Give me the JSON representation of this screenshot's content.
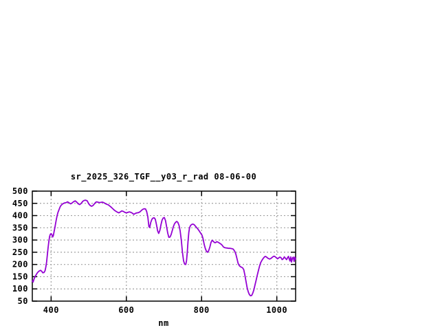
{
  "figure": {
    "background": "#ffffff",
    "border_color": "#000000",
    "text_color": "#000000"
  },
  "chart_data": {
    "type": "line",
    "title": "sr_2025_326_TGF__y03_r_rad 08-06-00",
    "xlabel": "nm",
    "ylabel": "",
    "xlim": [
      350,
      1050
    ],
    "ylim": [
      50,
      500
    ],
    "xticks": [
      400,
      600,
      800,
      1000
    ],
    "yticks": [
      50,
      100,
      150,
      200,
      250,
      300,
      350,
      400,
      450,
      500
    ],
    "grid": true,
    "legend_position": "none",
    "line_color": "#9400D3",
    "grid_color": "#A0A0A0",
    "series": [
      {
        "name": "sr_2025_326_TGF__y03_r_rad 08-06-00",
        "points": [
          [
            350,
            133
          ],
          [
            352,
            128
          ],
          [
            355,
            142
          ],
          [
            358,
            152
          ],
          [
            361,
            160
          ],
          [
            364,
            167
          ],
          [
            368,
            173
          ],
          [
            372,
            176
          ],
          [
            375,
            172
          ],
          [
            378,
            166
          ],
          [
            381,
            167
          ],
          [
            384,
            175
          ],
          [
            386,
            190
          ],
          [
            388,
            210
          ],
          [
            390,
            240
          ],
          [
            392,
            270
          ],
          [
            394,
            295
          ],
          [
            396,
            315
          ],
          [
            398,
            324
          ],
          [
            400,
            326
          ],
          [
            402,
            322
          ],
          [
            404,
            312
          ],
          [
            406,
            318
          ],
          [
            408,
            335
          ],
          [
            410,
            350
          ],
          [
            412,
            368
          ],
          [
            414,
            385
          ],
          [
            416,
            400
          ],
          [
            418,
            412
          ],
          [
            420,
            420
          ],
          [
            422,
            428
          ],
          [
            424,
            436
          ],
          [
            426,
            441
          ],
          [
            428,
            444
          ],
          [
            430,
            447
          ],
          [
            433,
            450
          ],
          [
            436,
            452
          ],
          [
            440,
            453
          ],
          [
            444,
            456
          ],
          [
            448,
            452
          ],
          [
            452,
            448
          ],
          [
            456,
            452
          ],
          [
            460,
            457
          ],
          [
            464,
            460
          ],
          [
            468,
            455
          ],
          [
            472,
            448
          ],
          [
            476,
            445
          ],
          [
            480,
            450
          ],
          [
            484,
            458
          ],
          [
            488,
            462
          ],
          [
            492,
            463
          ],
          [
            496,
            460
          ],
          [
            500,
            448
          ],
          [
            504,
            441
          ],
          [
            508,
            438
          ],
          [
            512,
            442
          ],
          [
            516,
            450
          ],
          [
            520,
            456
          ],
          [
            524,
            455
          ],
          [
            528,
            453
          ],
          [
            532,
            454
          ],
          [
            536,
            455
          ],
          [
            540,
            453
          ],
          [
            544,
            449
          ],
          [
            548,
            446
          ],
          [
            552,
            444
          ],
          [
            556,
            439
          ],
          [
            560,
            434
          ],
          [
            564,
            428
          ],
          [
            568,
            422
          ],
          [
            572,
            418
          ],
          [
            576,
            414
          ],
          [
            580,
            411
          ],
          [
            584,
            415
          ],
          [
            588,
            419
          ],
          [
            592,
            417
          ],
          [
            596,
            413
          ],
          [
            600,
            411
          ],
          [
            604,
            413
          ],
          [
            608,
            415
          ],
          [
            612,
            413
          ],
          [
            616,
            410
          ],
          [
            620,
            405
          ],
          [
            624,
            409
          ],
          [
            628,
            411
          ],
          [
            632,
            412
          ],
          [
            636,
            415
          ],
          [
            640,
            421
          ],
          [
            644,
            426
          ],
          [
            648,
            428
          ],
          [
            651,
            427
          ],
          [
            654,
            417
          ],
          [
            657,
            395
          ],
          [
            660,
            355
          ],
          [
            662,
            351
          ],
          [
            665,
            372
          ],
          [
            668,
            385
          ],
          [
            671,
            390
          ],
          [
            674,
            391
          ],
          [
            677,
            385
          ],
          [
            680,
            363
          ],
          [
            683,
            338
          ],
          [
            686,
            327
          ],
          [
            689,
            339
          ],
          [
            692,
            362
          ],
          [
            695,
            382
          ],
          [
            698,
            390
          ],
          [
            701,
            392
          ],
          [
            704,
            380
          ],
          [
            707,
            355
          ],
          [
            710,
            328
          ],
          [
            713,
            311
          ],
          [
            716,
            312
          ],
          [
            719,
            322
          ],
          [
            722,
            338
          ],
          [
            725,
            355
          ],
          [
            728,
            366
          ],
          [
            731,
            373
          ],
          [
            734,
            376
          ],
          [
            737,
            372
          ],
          [
            740,
            360
          ],
          [
            743,
            338
          ],
          [
            746,
            300
          ],
          [
            749,
            252
          ],
          [
            752,
            215
          ],
          [
            755,
            201
          ],
          [
            758,
            200
          ],
          [
            760,
            215
          ],
          [
            762,
            250
          ],
          [
            764,
            295
          ],
          [
            766,
            330
          ],
          [
            768,
            350
          ],
          [
            771,
            360
          ],
          [
            774,
            364
          ],
          [
            777,
            365
          ],
          [
            780,
            363
          ],
          [
            783,
            358
          ],
          [
            786,
            352
          ],
          [
            789,
            347
          ],
          [
            792,
            341
          ],
          [
            795,
            334
          ],
          [
            798,
            327
          ],
          [
            801,
            320
          ],
          [
            804,
            305
          ],
          [
            807,
            282
          ],
          [
            810,
            265
          ],
          [
            813,
            254
          ],
          [
            816,
            250
          ],
          [
            819,
            257
          ],
          [
            822,
            272
          ],
          [
            825,
            290
          ],
          [
            828,
            299
          ],
          [
            831,
            295
          ],
          [
            834,
            290
          ],
          [
            837,
            289
          ],
          [
            840,
            293
          ],
          [
            843,
            292
          ],
          [
            846,
            289
          ],
          [
            849,
            286
          ],
          [
            852,
            283
          ],
          [
            855,
            278
          ],
          [
            858,
            272
          ],
          [
            861,
            269
          ],
          [
            864,
            268
          ],
          [
            868,
            267
          ],
          [
            872,
            266
          ],
          [
            876,
            266
          ],
          [
            880,
            265
          ],
          [
            884,
            263
          ],
          [
            888,
            254
          ],
          [
            891,
            243
          ],
          [
            894,
            225
          ],
          [
            897,
            205
          ],
          [
            900,
            196
          ],
          [
            903,
            191
          ],
          [
            906,
            189
          ],
          [
            909,
            186
          ],
          [
            912,
            179
          ],
          [
            915,
            158
          ],
          [
            918,
            131
          ],
          [
            921,
            106
          ],
          [
            924,
            88
          ],
          [
            927,
            77
          ],
          [
            930,
            72
          ],
          [
            933,
            73
          ],
          [
            936,
            82
          ],
          [
            939,
            96
          ],
          [
            942,
            116
          ],
          [
            945,
            136
          ],
          [
            948,
            156
          ],
          [
            951,
            174
          ],
          [
            954,
            193
          ],
          [
            957,
            207
          ],
          [
            960,
            216
          ],
          [
            963,
            223
          ],
          [
            966,
            229
          ],
          [
            969,
            233
          ],
          [
            972,
            231
          ],
          [
            975,
            227
          ],
          [
            978,
            224
          ],
          [
            981,
            222
          ],
          [
            984,
            224
          ],
          [
            987,
            228
          ],
          [
            990,
            232
          ],
          [
            993,
            234
          ],
          [
            996,
            231
          ],
          [
            999,
            227
          ],
          [
            1002,
            223
          ],
          [
            1005,
            227
          ],
          [
            1008,
            230
          ],
          [
            1011,
            228
          ],
          [
            1014,
            220
          ],
          [
            1017,
            223
          ],
          [
            1020,
            231
          ],
          [
            1023,
            225
          ],
          [
            1026,
            220
          ],
          [
            1029,
            229
          ],
          [
            1031,
            233
          ],
          [
            1033,
            222
          ],
          [
            1035,
            214
          ],
          [
            1037,
            231
          ],
          [
            1039,
            210
          ],
          [
            1042,
            228
          ],
          [
            1044,
            230
          ],
          [
            1046,
            212
          ],
          [
            1048,
            230
          ],
          [
            1050,
            221
          ]
        ]
      }
    ]
  }
}
